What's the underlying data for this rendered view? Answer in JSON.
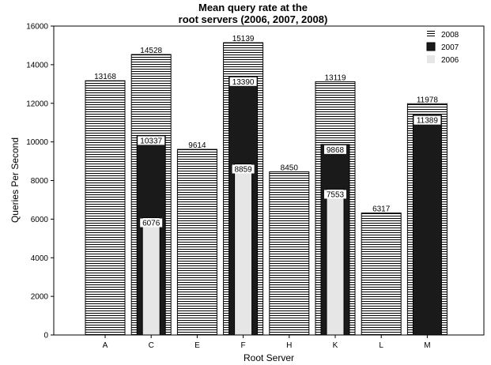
{
  "chart_data": {
    "type": "bar",
    "title": [
      "Mean query rate at the",
      "root servers (2006, 2007, 2008)"
    ],
    "xlabel": "Root Server",
    "ylabel": "Queries Per Second",
    "ylim": [
      0,
      16000
    ],
    "yticks": [
      0,
      2000,
      4000,
      6000,
      8000,
      10000,
      12000,
      14000,
      16000
    ],
    "categories": [
      "A",
      "C",
      "E",
      "F",
      "H",
      "K",
      "L",
      "M"
    ],
    "legend_position": "top-right",
    "grid": false,
    "series": [
      {
        "name": "2008",
        "fill": "hatched",
        "values": [
          13168,
          14528,
          9614,
          15139,
          8450,
          13119,
          6317,
          11978
        ]
      },
      {
        "name": "2007",
        "fill": "#1a1a1a",
        "values": [
          null,
          10337,
          null,
          13390,
          null,
          9868,
          null,
          11389
        ]
      },
      {
        "name": "2006",
        "fill": "#e6e6e6",
        "values": [
          null,
          6076,
          null,
          8859,
          null,
          7553,
          null,
          null
        ]
      }
    ]
  }
}
